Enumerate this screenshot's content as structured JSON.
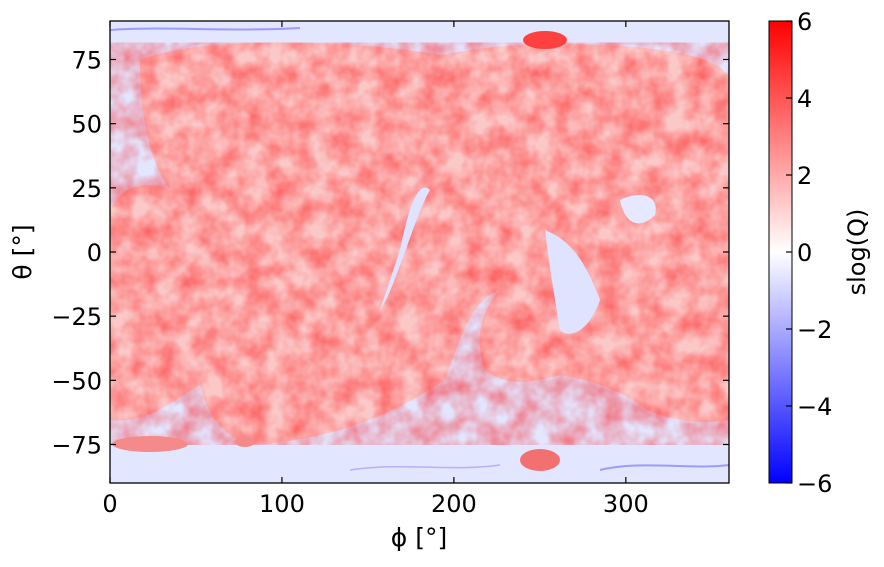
{
  "chart_data": {
    "type": "heatmap",
    "title": "",
    "xlabel": "ϕ [°]",
    "ylabel": "θ [°]",
    "colorbar_label": "slog(Q)",
    "xlim": [
      0,
      360
    ],
    "ylim": [
      -90,
      90
    ],
    "x_ticks": [
      0,
      100,
      200,
      300
    ],
    "y_ticks": [
      75,
      50,
      25,
      0,
      -25,
      -50,
      -75
    ],
    "x_tick_labels": [
      "0",
      "100",
      "200",
      "300"
    ],
    "y_tick_labels": [
      "75",
      "50",
      "25",
      "0",
      "−25",
      "−50",
      "−75"
    ],
    "colorbar_range": [
      -6,
      6
    ],
    "colorbar_ticks": [
      6,
      4,
      2,
      0,
      -2,
      -4,
      -6
    ],
    "colorbar_tick_labels": [
      "6",
      "4",
      "2",
      "0",
      "−2",
      "−4",
      "−6"
    ],
    "colormap": "bwr",
    "colors": {
      "low": "#0000ff",
      "mid": "#ffffff",
      "high": "#ff0000"
    },
    "grid": false
  }
}
